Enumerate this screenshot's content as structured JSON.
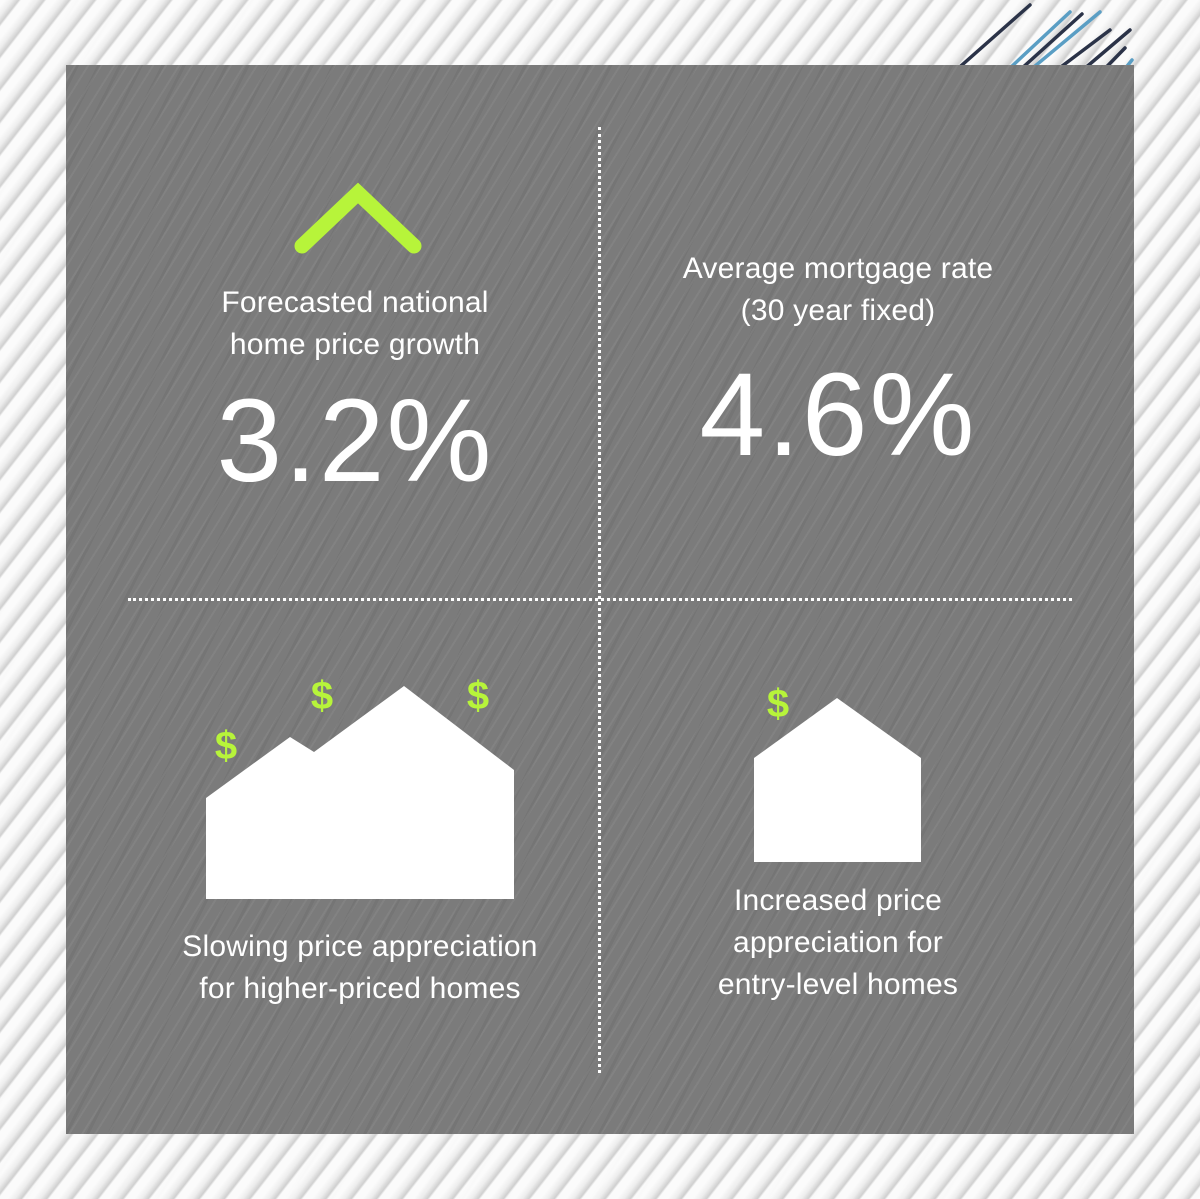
{
  "quadrants": {
    "top_left": {
      "label_line1": "Forecasted national",
      "label_line2": "home price growth",
      "value": "3.2%",
      "icon": "chevron-up-icon"
    },
    "top_right": {
      "label_line1": "Average mortgage rate",
      "label_line2": "(30 year fixed)",
      "value": "4.6%"
    },
    "bottom_left": {
      "label_line1": "Slowing price appreciation",
      "label_line2": "for higher-priced homes",
      "dollar_signs": [
        "$",
        "$",
        "$"
      ],
      "icon": "house-group-icon"
    },
    "bottom_right": {
      "label_line1": "Increased price",
      "label_line2": "appreciation for",
      "label_line3": "entry-level homes",
      "dollar_signs": [
        "$"
      ],
      "icon": "house-icon"
    }
  },
  "colors": {
    "accent": "#b7f43a",
    "panel": "#7b7b7b",
    "text": "#ffffff",
    "stripe_dark": "#2b3348",
    "stripe_blue": "#5a9ec4"
  }
}
